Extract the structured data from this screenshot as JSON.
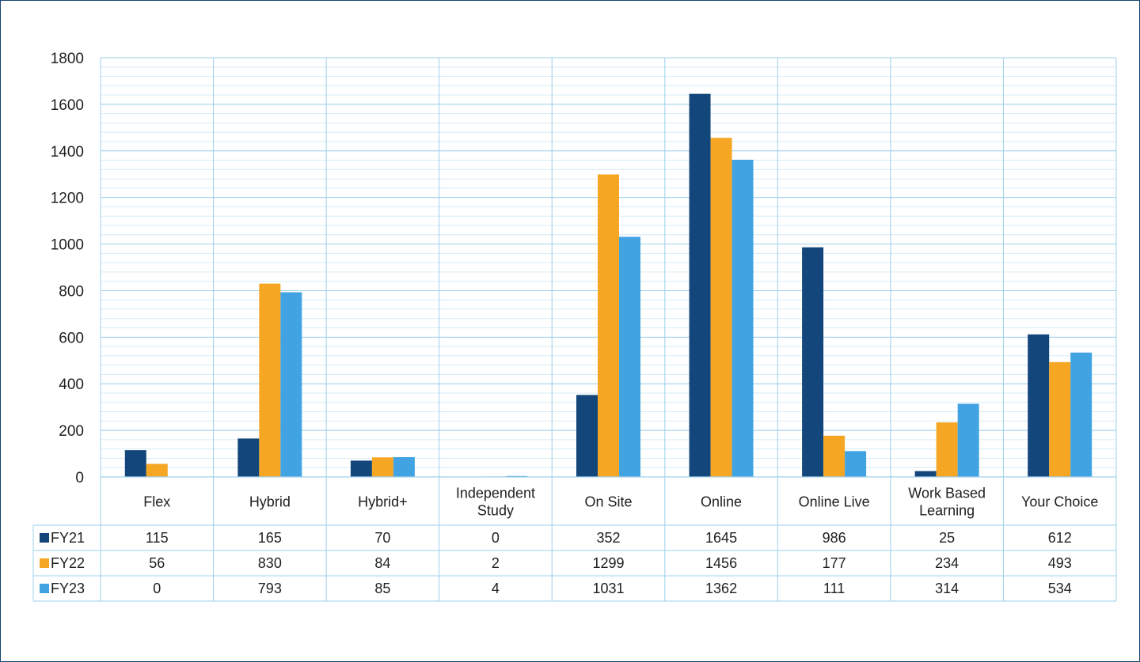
{
  "chart_data": {
    "type": "bar",
    "title": "",
    "xlabel": "",
    "ylabel": "",
    "ylim": [
      0,
      1800
    ],
    "yticks": [
      0,
      200,
      400,
      600,
      800,
      1000,
      1200,
      1400,
      1600,
      1800
    ],
    "grid": true,
    "legend": "data-table",
    "categories": [
      [
        "Flex"
      ],
      [
        "Hybrid"
      ],
      [
        "Hybrid+"
      ],
      [
        "Independent",
        "Study"
      ],
      [
        "On Site"
      ],
      [
        "Online"
      ],
      [
        "Online Live"
      ],
      [
        "Work Based",
        "Learning"
      ],
      [
        "Your Choice"
      ]
    ],
    "series": [
      {
        "name": "FY21",
        "color": "#13467a",
        "values": [
          115,
          165,
          70,
          0,
          352,
          1645,
          986,
          25,
          612
        ]
      },
      {
        "name": "FY22",
        "color": "#f5a623",
        "values": [
          56,
          830,
          84,
          2,
          1299,
          1456,
          177,
          234,
          493
        ]
      },
      {
        "name": "FY23",
        "color": "#42a3e2",
        "values": [
          0,
          793,
          85,
          4,
          1031,
          1362,
          111,
          314,
          534
        ]
      }
    ]
  },
  "colors": {
    "grid": "#9fd0ec",
    "minor_grid": "#d6ecf8",
    "frame": "#1a4470"
  }
}
